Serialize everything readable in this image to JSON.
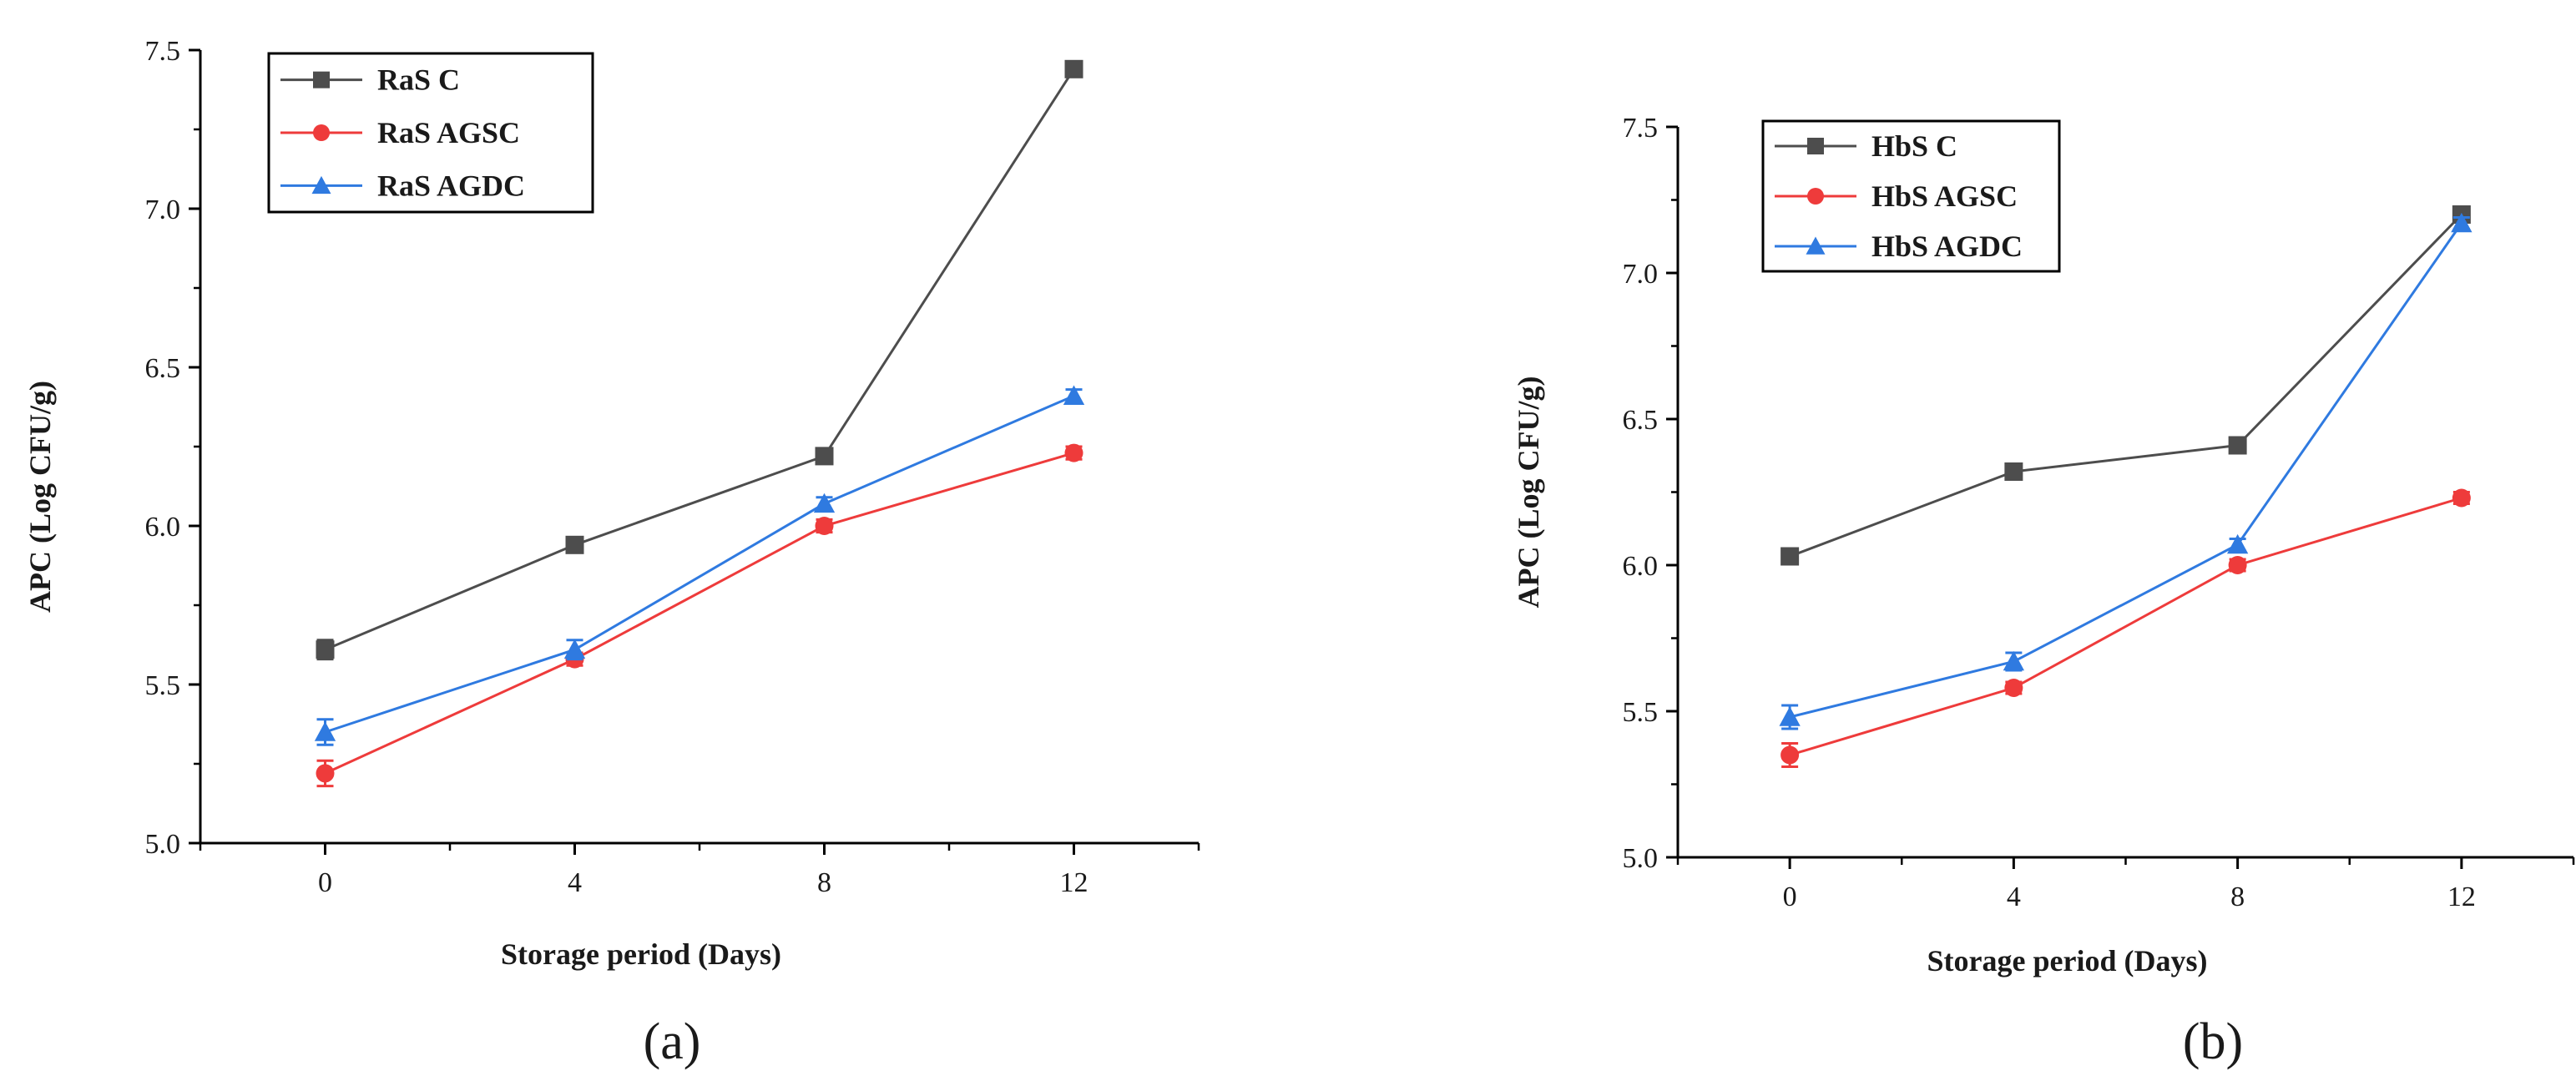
{
  "chart_data": [
    {
      "type": "line",
      "panel_label": "(a)",
      "xlabel": "Storage period (Days)",
      "ylabel": "APC (Log CFU/g)",
      "x": [
        0,
        4,
        8,
        12
      ],
      "xticks": [
        "0",
        "4",
        "8",
        "12"
      ],
      "xlim": [
        -2,
        14
      ],
      "ylim": [
        5.0,
        7.5
      ],
      "yticks": [
        "5.0",
        "5.5",
        "6.0",
        "6.5",
        "7.0",
        "7.5"
      ],
      "legend_position": "top-left",
      "series": [
        {
          "name": "RaS C",
          "marker": "square",
          "color": "#4d4d4d",
          "values": [
            5.61,
            5.94,
            6.22,
            7.44
          ],
          "errors": [
            0.03,
            0.02,
            0.02,
            0.02
          ]
        },
        {
          "name": "RaS AGSC",
          "marker": "circle",
          "color": "#ee3b3b",
          "values": [
            5.22,
            5.58,
            6.0,
            6.23
          ],
          "errors": [
            0.04,
            0.02,
            0.02,
            0.02
          ]
        },
        {
          "name": "RaS AGDC",
          "marker": "triangle",
          "color": "#2f7ae0",
          "values": [
            5.35,
            5.61,
            6.07,
            6.41
          ],
          "errors": [
            0.04,
            0.03,
            0.02,
            0.02
          ]
        }
      ]
    },
    {
      "type": "line",
      "panel_label": "(b)",
      "xlabel": "Storage period (Days)",
      "ylabel": "APC (Log CFU/g)",
      "x": [
        0,
        4,
        8,
        12
      ],
      "xticks": [
        "0",
        "4",
        "8",
        "12"
      ],
      "xlim": [
        -2,
        14
      ],
      "ylim": [
        5.0,
        7.5
      ],
      "yticks": [
        "5.0",
        "5.5",
        "6.0",
        "6.5",
        "7.0",
        "7.5"
      ],
      "legend_position": "top-left",
      "series": [
        {
          "name": "HbS C",
          "marker": "square",
          "color": "#4d4d4d",
          "values": [
            6.03,
            6.32,
            6.41,
            7.2
          ],
          "errors": [
            0.02,
            0.02,
            0.02,
            0.02
          ]
        },
        {
          "name": "HbS AGSC",
          "marker": "circle",
          "color": "#ee3b3b",
          "values": [
            5.35,
            5.58,
            6.0,
            6.23
          ],
          "errors": [
            0.04,
            0.02,
            0.02,
            0.02
          ]
        },
        {
          "name": "HbS AGDC",
          "marker": "triangle",
          "color": "#2f7ae0",
          "values": [
            5.48,
            5.67,
            6.07,
            7.17
          ],
          "errors": [
            0.04,
            0.03,
            0.02,
            0.02
          ]
        }
      ]
    }
  ]
}
